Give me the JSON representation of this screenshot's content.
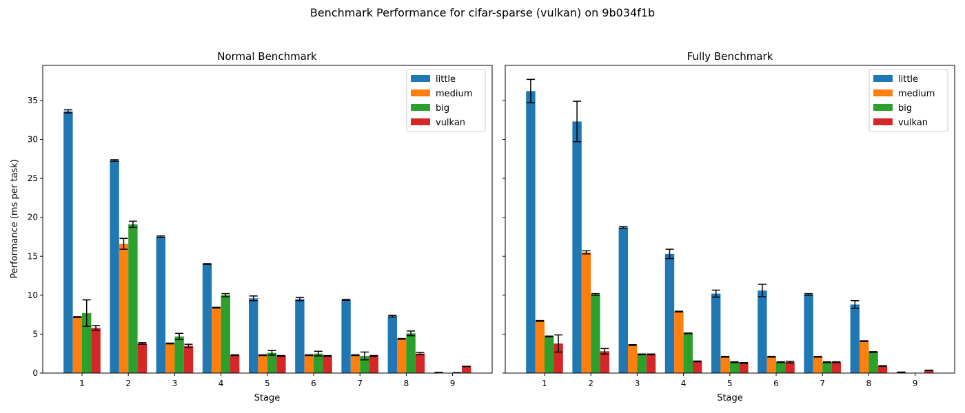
{
  "figure": {
    "suptitle": "Benchmark Performance for cifar-sparse (vulkan) on 9b034f1b"
  },
  "colors": {
    "little": "#1f77b4",
    "medium": "#ff7f0e",
    "big": "#2ca02c",
    "vulkan": "#d62728",
    "errorbar": "#000000"
  },
  "chart_data": [
    {
      "type": "bar",
      "title": "Normal Benchmark",
      "xlabel": "Stage",
      "ylabel": "Performance (ms per task)",
      "categories": [
        "1",
        "2",
        "3",
        "4",
        "5",
        "6",
        "7",
        "8",
        "9"
      ],
      "ylim": [
        0,
        39.5
      ],
      "yticks": [
        0,
        5,
        10,
        15,
        20,
        25,
        30,
        35
      ],
      "legend_position": "top-right",
      "grid": false,
      "series": [
        {
          "name": "little",
          "values": [
            33.6,
            27.3,
            17.5,
            14.0,
            9.6,
            9.5,
            9.4,
            7.3,
            0.08
          ],
          "errors": [
            0.2,
            0.1,
            0.1,
            0.05,
            0.3,
            0.2,
            0.05,
            0.1,
            0.01
          ]
        },
        {
          "name": "medium",
          "values": [
            7.2,
            16.6,
            3.8,
            8.4,
            2.3,
            2.3,
            2.3,
            4.4,
            0.0
          ],
          "errors": [
            0.05,
            0.7,
            0.05,
            0.05,
            0.05,
            0.05,
            0.05,
            0.05,
            0.0
          ]
        },
        {
          "name": "big",
          "values": [
            7.7,
            19.1,
            4.7,
            10.0,
            2.6,
            2.5,
            2.2,
            5.1,
            0.05
          ],
          "errors": [
            1.7,
            0.4,
            0.4,
            0.2,
            0.3,
            0.3,
            0.5,
            0.3,
            0.01
          ]
        },
        {
          "name": "vulkan",
          "values": [
            5.8,
            3.8,
            3.5,
            2.3,
            2.2,
            2.2,
            2.2,
            2.5,
            0.85
          ],
          "errors": [
            0.3,
            0.1,
            0.2,
            0.05,
            0.05,
            0.05,
            0.05,
            0.15,
            0.02
          ]
        }
      ]
    },
    {
      "type": "bar",
      "title": "Fully Benchmark",
      "xlabel": "Stage",
      "ylabel": "",
      "categories": [
        "1",
        "2",
        "3",
        "4",
        "5",
        "6",
        "7",
        "8",
        "9"
      ],
      "ylim": [
        0,
        39.5
      ],
      "yticks": [
        0,
        5,
        10,
        15,
        20,
        25,
        30,
        35
      ],
      "legend_position": "top-right",
      "grid": false,
      "series": [
        {
          "name": "little",
          "values": [
            36.2,
            32.3,
            18.7,
            15.3,
            10.2,
            10.6,
            10.1,
            8.8,
            0.12
          ],
          "errors": [
            1.5,
            2.6,
            0.1,
            0.6,
            0.45,
            0.8,
            0.1,
            0.5,
            0.01
          ]
        },
        {
          "name": "medium",
          "values": [
            6.7,
            15.5,
            3.6,
            7.9,
            2.1,
            2.1,
            2.1,
            4.1,
            0.0
          ],
          "errors": [
            0.05,
            0.2,
            0.05,
            0.05,
            0.05,
            0.05,
            0.05,
            0.05,
            0.0
          ]
        },
        {
          "name": "big",
          "values": [
            4.7,
            10.1,
            2.4,
            5.1,
            1.4,
            1.4,
            1.4,
            2.7,
            0.0
          ],
          "errors": [
            0.05,
            0.1,
            0.05,
            0.05,
            0.05,
            0.05,
            0.05,
            0.05,
            0.0
          ]
        },
        {
          "name": "vulkan",
          "values": [
            3.8,
            2.8,
            2.4,
            1.5,
            1.3,
            1.4,
            1.4,
            0.9,
            0.35
          ],
          "errors": [
            1.1,
            0.35,
            0.05,
            0.05,
            0.05,
            0.1,
            0.05,
            0.05,
            0.02
          ]
        }
      ]
    }
  ]
}
